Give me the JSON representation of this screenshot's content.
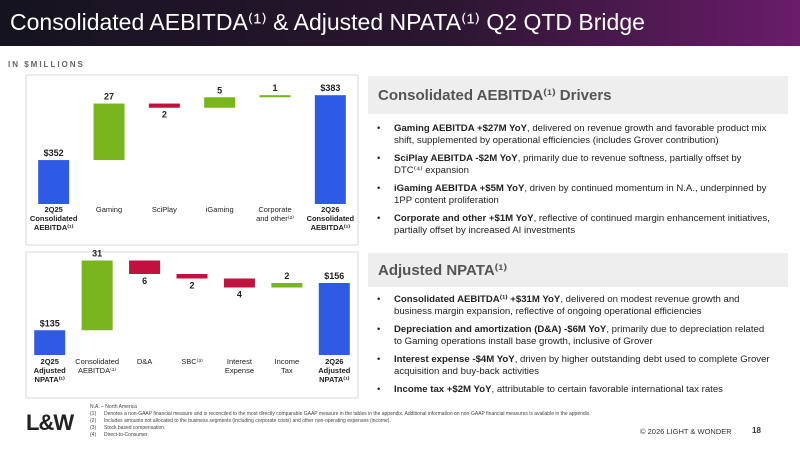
{
  "header": {
    "title": "Consolidated AEBITDA⁽¹⁾ & Adjusted NPATA⁽¹⁾ Q2 QTD Bridge",
    "units": "IN $MILLIONS"
  },
  "chart_data": [
    {
      "type": "waterfall",
      "categories": [
        "2Q25\nConsolidated\nAEBITDA⁽¹⁾",
        "Gaming",
        "SciPlay",
        "iGaming",
        "Corporate\nand other⁽²⁾",
        "2Q26\nConsolidated\nAEBITDA⁽¹⁾"
      ],
      "measures": [
        "total",
        "relative",
        "relative",
        "relative",
        "relative",
        "total"
      ],
      "values": [
        352,
        27,
        -2,
        5,
        1,
        383
      ],
      "value_labels": [
        "$352",
        "27",
        "2",
        "5",
        "1",
        "$383"
      ],
      "colors": {
        "total": "#2f5be4",
        "increase": "#79b51c",
        "decrease": "#c1123f"
      },
      "ylim": [
        331,
        385
      ]
    },
    {
      "type": "waterfall",
      "categories": [
        "2Q25\nAdjusted\nNPATA⁽¹⁾",
        "Consolidated\nAEBITDA⁽¹⁾",
        "D&A",
        "SBC⁽³⁾",
        "Interest\nExpense",
        "Income\nTax",
        "2Q26\nAdjusted\nNPATA⁽¹⁾"
      ],
      "measures": [
        "total",
        "relative",
        "relative",
        "relative",
        "relative",
        "relative",
        "total"
      ],
      "values": [
        135,
        31,
        -6,
        -2,
        -4,
        2,
        156
      ],
      "value_labels": [
        "$135",
        "31",
        "6",
        "2",
        "4",
        "2",
        "$156"
      ],
      "colors": {
        "total": "#2f5be4",
        "increase": "#79b51c",
        "decrease": "#c1123f"
      },
      "ylim": [
        124,
        168
      ]
    }
  ],
  "panels": [
    {
      "title": "Consolidated AEBITDA⁽¹⁾ Drivers",
      "bullets": [
        {
          "bold": "Gaming AEBITDA +$27M YoY",
          "text": ", delivered on revenue growth and favorable product mix shift, supplemented by operational efficiencies (includes Grover contribution)"
        },
        {
          "bold": "SciPlay AEBITDA -$2M YoY",
          "text": ", primarily due to revenue softness, partially offset by DTC⁽⁴⁾ expansion"
        },
        {
          "bold": "iGaming AEBITDA +$5M YoY",
          "text": ", driven by continued momentum in N.A., underpinned by 1PP content proliferation"
        },
        {
          "bold": "Corporate and other +$1M YoY",
          "text": ", reflective of continued margin enhancement initiatives, partially offset by increased AI investments"
        }
      ]
    },
    {
      "title": "Adjusted NPATA⁽¹⁾",
      "bullets": [
        {
          "bold": "Consolidated AEBITDA⁽¹⁾ +$31M YoY",
          "text": ", delivered on modest revenue growth and business margin expansion, reflective of ongoing operational efficiencies"
        },
        {
          "bold": "Depreciation and amortization (D&A) -$6M YoY",
          "text": ", primarily due to depreciation related to Gaming operations install base growth, inclusive of Grover"
        },
        {
          "bold": "Interest expense -$4M YoY",
          "text": ", driven by higher outstanding debt used to complete Grover acquisition and buy-back activities"
        },
        {
          "bold": "Income tax +$2M YoY",
          "text": ", attributable to certain favorable international tax rates"
        }
      ]
    }
  ],
  "footer": {
    "logo": "L&W",
    "abbrev": "N.A. – North America",
    "notes": [
      {
        "marker": "(1)",
        "text": "Denotes a non-GAAP financial measure and is reconciled to the most directly comparable GAAP measure in the tables in the appendix. Additional information on non-GAAP financial measures is available in the appendix."
      },
      {
        "marker": "(2)",
        "text": "Includes amounts not allocated to the business segments (including corporate costs) and other non-operating expenses (income)."
      },
      {
        "marker": "(3)",
        "text": "Stock based compensation."
      },
      {
        "marker": "(4)",
        "text": "Direct-to-Consumer."
      }
    ],
    "copyright": "© 2026 LIGHT & WONDER",
    "page": "18"
  }
}
